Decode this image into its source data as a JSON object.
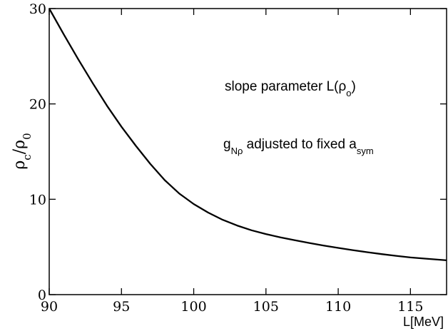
{
  "chart_data": {
    "type": "line",
    "xlabel": "L[MeV]",
    "ylabel": {
      "main": "ρ",
      "sub1": "c",
      "slash": "/",
      "main2": "ρ",
      "sub2": "0"
    },
    "xlim": [
      90,
      117.5
    ],
    "ylim": [
      0,
      30
    ],
    "xticks": [
      90,
      95,
      100,
      105,
      110,
      115
    ],
    "yticks": [
      0,
      10,
      20,
      30
    ],
    "grid": false,
    "annotations": [
      {
        "parts": [
          {
            "t": "slope parameter L(ρ"
          },
          {
            "t": "o",
            "sub": true
          },
          {
            "t": ")"
          }
        ]
      },
      {
        "parts": [
          {
            "t": "g"
          },
          {
            "t": "Nρ",
            "sub": true
          },
          {
            "t": " adjusted to fixed a"
          },
          {
            "t": "sym",
            "sub": true
          }
        ]
      }
    ],
    "series": [
      {
        "color": "#000000",
        "x": [
          90,
          91,
          92,
          93,
          94,
          95,
          96,
          97,
          98,
          99,
          100,
          101,
          102,
          103,
          104,
          105,
          106,
          107,
          108,
          109,
          110,
          111,
          112,
          113,
          114,
          115,
          116,
          117.5
        ],
        "y": [
          30.0,
          27.3,
          24.7,
          22.2,
          19.8,
          17.6,
          15.6,
          13.7,
          12.0,
          10.6,
          9.5,
          8.6,
          7.85,
          7.25,
          6.75,
          6.35,
          6.0,
          5.7,
          5.42,
          5.15,
          4.9,
          4.67,
          4.45,
          4.25,
          4.07,
          3.9,
          3.78,
          3.6
        ]
      }
    ]
  }
}
